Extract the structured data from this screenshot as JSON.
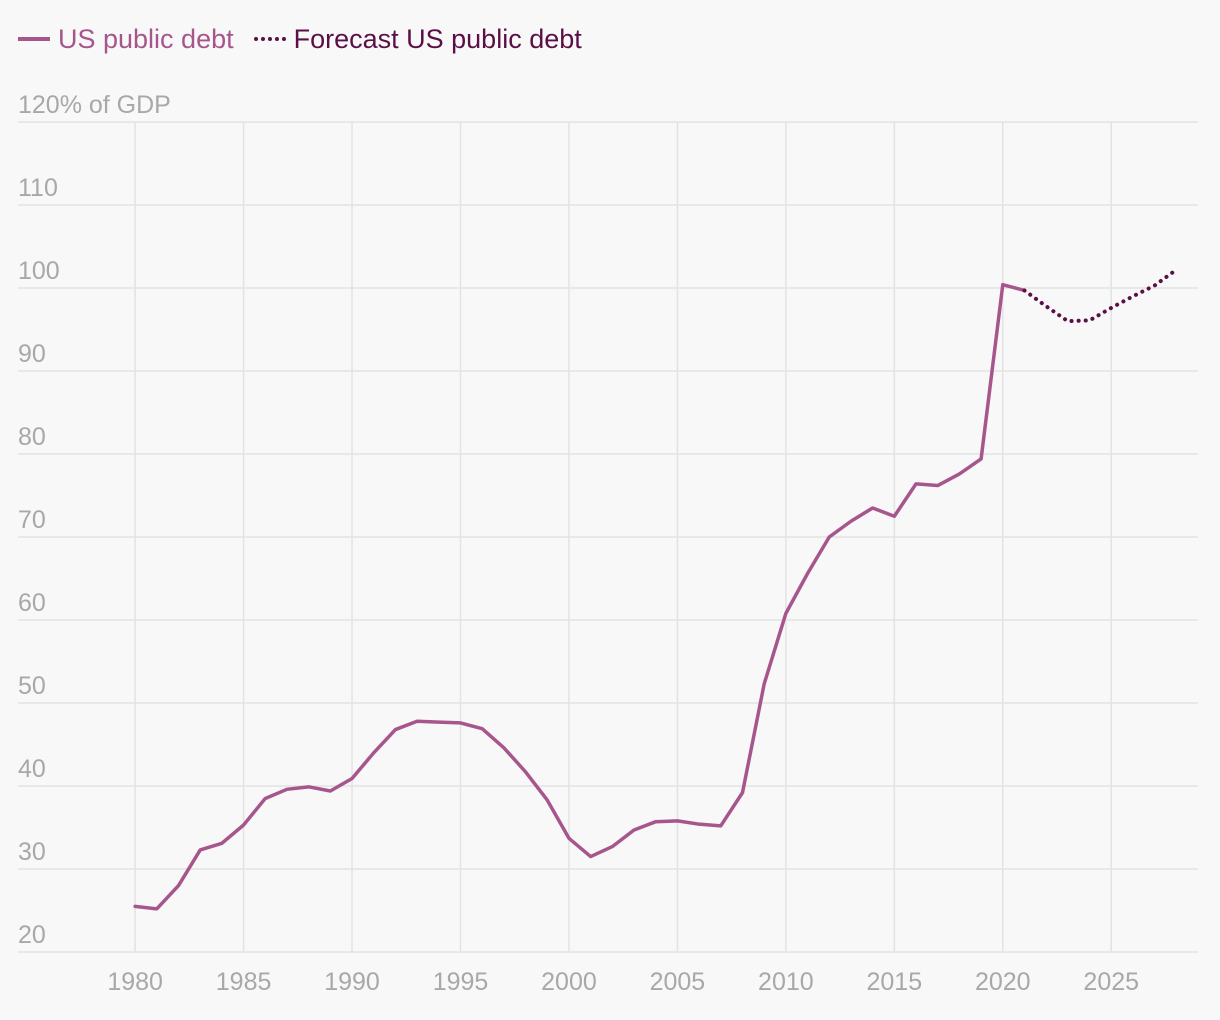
{
  "colors": {
    "actual": "#a7568d",
    "forecast": "#5b0f46",
    "grid": "#e3e3e3",
    "tick_text": "#a8a8a8",
    "background": "#f8f8f8"
  },
  "chart_data": {
    "type": "line",
    "title": "",
    "ylabel": "% of GDP",
    "ylabel_suffix": "% of GDP",
    "xlim": [
      1974.6,
      2029
    ],
    "ylim": [
      20,
      120
    ],
    "x_ticks": [
      1980,
      1985,
      1990,
      1995,
      2000,
      2005,
      2010,
      2015,
      2020,
      2025
    ],
    "y_ticks": [
      20,
      30,
      40,
      50,
      60,
      70,
      80,
      90,
      100,
      110,
      120
    ],
    "series": [
      {
        "name": "US public debt",
        "style": "solid",
        "x": [
          1980,
          1981,
          1982,
          1983,
          1984,
          1985,
          1986,
          1987,
          1988,
          1989,
          1990,
          1991,
          1992,
          1993,
          1994,
          1995,
          1996,
          1997,
          1998,
          1999,
          2000,
          2001,
          2002,
          2003,
          2004,
          2005,
          2006,
          2007,
          2008,
          2009,
          2010,
          2011,
          2012,
          2013,
          2014,
          2015,
          2016,
          2017,
          2018,
          2019,
          2020,
          2021
        ],
        "y": [
          25.5,
          25.2,
          28.0,
          32.3,
          33.1,
          35.3,
          38.5,
          39.6,
          39.9,
          39.4,
          40.9,
          44.0,
          46.8,
          47.8,
          47.7,
          47.6,
          46.9,
          44.6,
          41.7,
          38.3,
          33.7,
          31.5,
          32.7,
          34.7,
          35.7,
          35.8,
          35.4,
          35.2,
          39.2,
          52.3,
          60.8,
          65.6,
          70.0,
          71.9,
          73.5,
          72.5,
          76.4,
          76.2,
          77.6,
          79.4,
          100.4,
          99.7
        ]
      },
      {
        "name": "Forecast US public debt",
        "style": "dotted",
        "x": [
          2021,
          2022,
          2023,
          2024,
          2025,
          2026,
          2027,
          2028
        ],
        "y": [
          99.7,
          97.8,
          96.0,
          96.1,
          97.6,
          99.0,
          100.3,
          102.2
        ]
      }
    ]
  }
}
